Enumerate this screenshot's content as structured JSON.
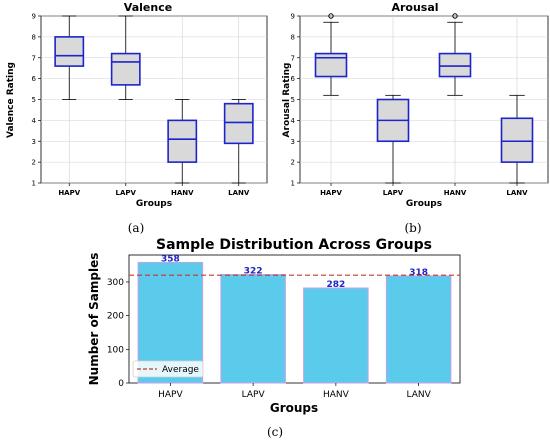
{
  "chart_data": [
    {
      "type": "box",
      "title": "Valence",
      "xlabel": "Groups",
      "ylabel": "Valence Rating",
      "ylim": [
        1,
        9
      ],
      "yticks": [
        1,
        2,
        3,
        4,
        5,
        6,
        7,
        8,
        9
      ],
      "grid": true,
      "caption": "(a)",
      "categories": [
        "HAPV",
        "LAPV",
        "HANV",
        "LANV"
      ],
      "boxes": [
        {
          "whisker_low": 5.0,
          "q1": 6.6,
          "median": 7.1,
          "q3": 8.0,
          "whisker_high": 9.0,
          "outliers": []
        },
        {
          "whisker_low": 5.0,
          "q1": 5.7,
          "median": 6.8,
          "q3": 7.2,
          "whisker_high": 9.0,
          "outliers": []
        },
        {
          "whisker_low": 1.0,
          "q1": 2.0,
          "median": 3.1,
          "q3": 4.0,
          "whisker_high": 5.0,
          "outliers": []
        },
        {
          "whisker_low": 1.0,
          "q1": 2.9,
          "median": 3.9,
          "q3": 4.8,
          "whisker_high": 5.0,
          "outliers": []
        }
      ]
    },
    {
      "type": "box",
      "title": "Arousal",
      "xlabel": "Groups",
      "ylabel": "Arousal Rating",
      "ylim": [
        1,
        9
      ],
      "yticks": [
        1,
        2,
        3,
        4,
        5,
        6,
        7,
        8,
        9
      ],
      "grid": true,
      "caption": "(b)",
      "categories": [
        "HAPV",
        "LAPV",
        "HANV",
        "LANV"
      ],
      "boxes": [
        {
          "whisker_low": 5.2,
          "q1": 6.1,
          "median": 7.0,
          "q3": 7.2,
          "whisker_high": 8.7,
          "outliers": [
            9.0
          ]
        },
        {
          "whisker_low": 1.0,
          "q1": 3.0,
          "median": 4.0,
          "q3": 5.0,
          "whisker_high": 5.2,
          "outliers": []
        },
        {
          "whisker_low": 5.2,
          "q1": 6.1,
          "median": 6.6,
          "q3": 7.2,
          "whisker_high": 8.7,
          "outliers": [
            9.0
          ]
        },
        {
          "whisker_low": 1.0,
          "q1": 2.0,
          "median": 3.0,
          "q3": 4.1,
          "whisker_high": 5.2,
          "outliers": []
        }
      ]
    },
    {
      "type": "bar",
      "title": "Sample Distribution Across Groups",
      "xlabel": "Groups",
      "ylabel": "Number of Samples",
      "ylim": [
        0,
        380
      ],
      "yticks": [
        0,
        100,
        200,
        300
      ],
      "grid": false,
      "caption": "(c)",
      "categories": [
        "HAPV",
        "LAPV",
        "HANV",
        "LANV"
      ],
      "values": [
        358,
        322,
        282,
        318
      ],
      "average": 320,
      "legend": {
        "label": "Average",
        "placement": "lower-left"
      },
      "colors": {
        "bar": "#5bcbec",
        "bar_edge": "#c8a0e8",
        "value_label": "#1f25c8",
        "average_line": "#c0392b"
      }
    }
  ],
  "colors": {
    "box_edge": "#1d24c9",
    "box_fill": "#d9d9d9",
    "grid": "#d0d0d0"
  }
}
